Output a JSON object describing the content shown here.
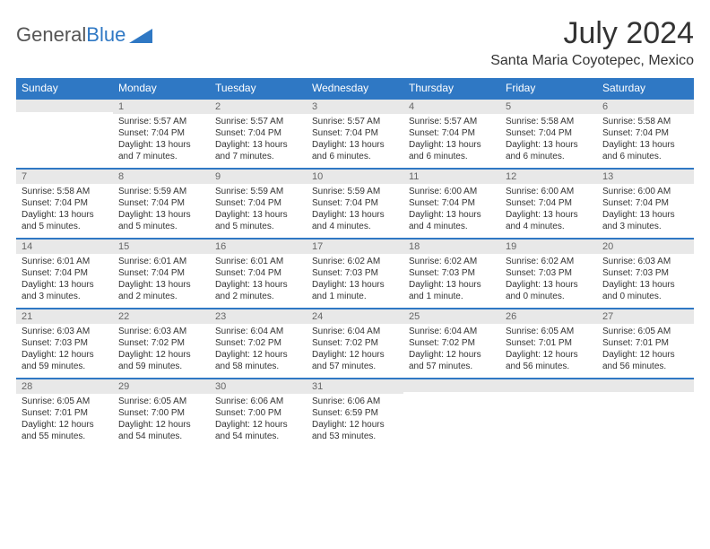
{
  "logo": {
    "part1": "General",
    "part2": "Blue"
  },
  "title": "July 2024",
  "location": "Santa Maria Coyotepec, Mexico",
  "header_bg": "#2f78c4",
  "header_fg": "#ffffff",
  "daynum_bg": "#e8e8e8",
  "day_border": "#2f78c4",
  "days": [
    "Sunday",
    "Monday",
    "Tuesday",
    "Wednesday",
    "Thursday",
    "Friday",
    "Saturday"
  ],
  "weeks": [
    [
      {
        "n": "",
        "sr": "",
        "ss": "",
        "dl": ""
      },
      {
        "n": "1",
        "sr": "Sunrise: 5:57 AM",
        "ss": "Sunset: 7:04 PM",
        "dl": "Daylight: 13 hours and 7 minutes."
      },
      {
        "n": "2",
        "sr": "Sunrise: 5:57 AM",
        "ss": "Sunset: 7:04 PM",
        "dl": "Daylight: 13 hours and 7 minutes."
      },
      {
        "n": "3",
        "sr": "Sunrise: 5:57 AM",
        "ss": "Sunset: 7:04 PM",
        "dl": "Daylight: 13 hours and 6 minutes."
      },
      {
        "n": "4",
        "sr": "Sunrise: 5:57 AM",
        "ss": "Sunset: 7:04 PM",
        "dl": "Daylight: 13 hours and 6 minutes."
      },
      {
        "n": "5",
        "sr": "Sunrise: 5:58 AM",
        "ss": "Sunset: 7:04 PM",
        "dl": "Daylight: 13 hours and 6 minutes."
      },
      {
        "n": "6",
        "sr": "Sunrise: 5:58 AM",
        "ss": "Sunset: 7:04 PM",
        "dl": "Daylight: 13 hours and 6 minutes."
      }
    ],
    [
      {
        "n": "7",
        "sr": "Sunrise: 5:58 AM",
        "ss": "Sunset: 7:04 PM",
        "dl": "Daylight: 13 hours and 5 minutes."
      },
      {
        "n": "8",
        "sr": "Sunrise: 5:59 AM",
        "ss": "Sunset: 7:04 PM",
        "dl": "Daylight: 13 hours and 5 minutes."
      },
      {
        "n": "9",
        "sr": "Sunrise: 5:59 AM",
        "ss": "Sunset: 7:04 PM",
        "dl": "Daylight: 13 hours and 5 minutes."
      },
      {
        "n": "10",
        "sr": "Sunrise: 5:59 AM",
        "ss": "Sunset: 7:04 PM",
        "dl": "Daylight: 13 hours and 4 minutes."
      },
      {
        "n": "11",
        "sr": "Sunrise: 6:00 AM",
        "ss": "Sunset: 7:04 PM",
        "dl": "Daylight: 13 hours and 4 minutes."
      },
      {
        "n": "12",
        "sr": "Sunrise: 6:00 AM",
        "ss": "Sunset: 7:04 PM",
        "dl": "Daylight: 13 hours and 4 minutes."
      },
      {
        "n": "13",
        "sr": "Sunrise: 6:00 AM",
        "ss": "Sunset: 7:04 PM",
        "dl": "Daylight: 13 hours and 3 minutes."
      }
    ],
    [
      {
        "n": "14",
        "sr": "Sunrise: 6:01 AM",
        "ss": "Sunset: 7:04 PM",
        "dl": "Daylight: 13 hours and 3 minutes."
      },
      {
        "n": "15",
        "sr": "Sunrise: 6:01 AM",
        "ss": "Sunset: 7:04 PM",
        "dl": "Daylight: 13 hours and 2 minutes."
      },
      {
        "n": "16",
        "sr": "Sunrise: 6:01 AM",
        "ss": "Sunset: 7:04 PM",
        "dl": "Daylight: 13 hours and 2 minutes."
      },
      {
        "n": "17",
        "sr": "Sunrise: 6:02 AM",
        "ss": "Sunset: 7:03 PM",
        "dl": "Daylight: 13 hours and 1 minute."
      },
      {
        "n": "18",
        "sr": "Sunrise: 6:02 AM",
        "ss": "Sunset: 7:03 PM",
        "dl": "Daylight: 13 hours and 1 minute."
      },
      {
        "n": "19",
        "sr": "Sunrise: 6:02 AM",
        "ss": "Sunset: 7:03 PM",
        "dl": "Daylight: 13 hours and 0 minutes."
      },
      {
        "n": "20",
        "sr": "Sunrise: 6:03 AM",
        "ss": "Sunset: 7:03 PM",
        "dl": "Daylight: 13 hours and 0 minutes."
      }
    ],
    [
      {
        "n": "21",
        "sr": "Sunrise: 6:03 AM",
        "ss": "Sunset: 7:03 PM",
        "dl": "Daylight: 12 hours and 59 minutes."
      },
      {
        "n": "22",
        "sr": "Sunrise: 6:03 AM",
        "ss": "Sunset: 7:02 PM",
        "dl": "Daylight: 12 hours and 59 minutes."
      },
      {
        "n": "23",
        "sr": "Sunrise: 6:04 AM",
        "ss": "Sunset: 7:02 PM",
        "dl": "Daylight: 12 hours and 58 minutes."
      },
      {
        "n": "24",
        "sr": "Sunrise: 6:04 AM",
        "ss": "Sunset: 7:02 PM",
        "dl": "Daylight: 12 hours and 57 minutes."
      },
      {
        "n": "25",
        "sr": "Sunrise: 6:04 AM",
        "ss": "Sunset: 7:02 PM",
        "dl": "Daylight: 12 hours and 57 minutes."
      },
      {
        "n": "26",
        "sr": "Sunrise: 6:05 AM",
        "ss": "Sunset: 7:01 PM",
        "dl": "Daylight: 12 hours and 56 minutes."
      },
      {
        "n": "27",
        "sr": "Sunrise: 6:05 AM",
        "ss": "Sunset: 7:01 PM",
        "dl": "Daylight: 12 hours and 56 minutes."
      }
    ],
    [
      {
        "n": "28",
        "sr": "Sunrise: 6:05 AM",
        "ss": "Sunset: 7:01 PM",
        "dl": "Daylight: 12 hours and 55 minutes."
      },
      {
        "n": "29",
        "sr": "Sunrise: 6:05 AM",
        "ss": "Sunset: 7:00 PM",
        "dl": "Daylight: 12 hours and 54 minutes."
      },
      {
        "n": "30",
        "sr": "Sunrise: 6:06 AM",
        "ss": "Sunset: 7:00 PM",
        "dl": "Daylight: 12 hours and 54 minutes."
      },
      {
        "n": "31",
        "sr": "Sunrise: 6:06 AM",
        "ss": "Sunset: 6:59 PM",
        "dl": "Daylight: 12 hours and 53 minutes."
      },
      {
        "n": "",
        "sr": "",
        "ss": "",
        "dl": ""
      },
      {
        "n": "",
        "sr": "",
        "ss": "",
        "dl": ""
      },
      {
        "n": "",
        "sr": "",
        "ss": "",
        "dl": ""
      }
    ]
  ]
}
